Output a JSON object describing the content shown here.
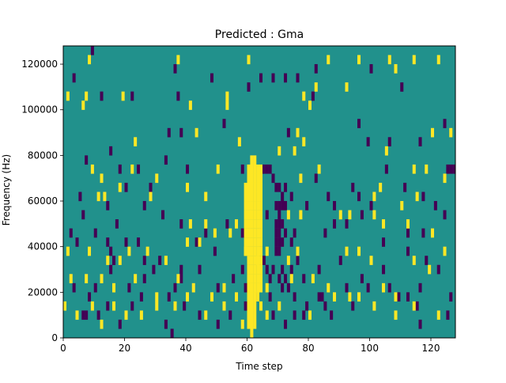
{
  "chart_data": {
    "type": "heatmap",
    "title": "Predicted : Gma",
    "xlabel": "Time step",
    "ylabel": "Frequency (Hz)",
    "xlim": [
      0,
      128
    ],
    "ylim": [
      0,
      128000
    ],
    "x_ticks": [
      0,
      20,
      40,
      60,
      80,
      100,
      120
    ],
    "y_ticks": [
      0,
      20000,
      40000,
      60000,
      80000,
      100000,
      120000
    ],
    "x_tick_labels": [
      "0",
      "20",
      "40",
      "60",
      "80",
      "100",
      "120"
    ],
    "y_tick_labels": [
      "0",
      "20000",
      "40000",
      "60000",
      "80000",
      "100000",
      "120000"
    ],
    "cell_height": 4000,
    "colormap": "viridis",
    "background_value": 0,
    "colors": {
      "background": "#21918c",
      "high": "#fde725",
      "low": "#440154"
    },
    "high_cells": [
      [
        8,
        120000
      ],
      [
        7,
        104000
      ],
      [
        1,
        104000
      ],
      [
        6,
        100000
      ],
      [
        19,
        104000
      ],
      [
        37,
        120000
      ],
      [
        41,
        100000
      ],
      [
        53,
        104000
      ],
      [
        60,
        120000
      ],
      [
        78,
        104000
      ],
      [
        86,
        120000
      ],
      [
        96,
        120000
      ],
      [
        106,
        120000
      ],
      [
        108,
        116000
      ],
      [
        114,
        120000
      ],
      [
        122,
        120000
      ],
      [
        82,
        108000
      ],
      [
        92,
        108000
      ],
      [
        53,
        100000
      ],
      [
        80,
        100000
      ],
      [
        23,
        84000
      ],
      [
        43,
        88000
      ],
      [
        57,
        84000
      ],
      [
        70,
        80000
      ],
      [
        75,
        80000
      ],
      [
        76,
        88000
      ],
      [
        78,
        84000
      ],
      [
        105,
        80000
      ],
      [
        120,
        88000
      ],
      [
        126,
        88000
      ],
      [
        9,
        72000
      ],
      [
        12,
        68000
      ],
      [
        22,
        72000
      ],
      [
        30,
        68000
      ],
      [
        40,
        64000
      ],
      [
        50,
        72000
      ],
      [
        77,
        68000
      ],
      [
        83,
        72000
      ],
      [
        114,
        72000
      ],
      [
        118,
        72000
      ],
      [
        124,
        68000
      ],
      [
        11,
        60000
      ],
      [
        13,
        60000
      ],
      [
        18,
        64000
      ],
      [
        28,
        60000
      ],
      [
        46,
        60000
      ],
      [
        101,
        60000
      ],
      [
        103,
        64000
      ],
      [
        110,
        56000
      ],
      [
        115,
        60000
      ],
      [
        41,
        48000
      ],
      [
        46,
        48000
      ],
      [
        49,
        44000
      ],
      [
        54,
        44000
      ],
      [
        56,
        48000
      ],
      [
        73,
        52000
      ],
      [
        77,
        52000
      ],
      [
        90,
        52000
      ],
      [
        93,
        52000
      ],
      [
        101,
        52000
      ],
      [
        104,
        48000
      ],
      [
        112,
        48000
      ],
      [
        120,
        44000
      ],
      [
        1,
        36000
      ],
      [
        8,
        36000
      ],
      [
        14,
        32000
      ],
      [
        18,
        32000
      ],
      [
        21,
        36000
      ],
      [
        27,
        36000
      ],
      [
        33,
        32000
      ],
      [
        40,
        40000
      ],
      [
        44,
        40000
      ],
      [
        59,
        36000
      ],
      [
        63,
        32000
      ],
      [
        66,
        36000
      ],
      [
        73,
        32000
      ],
      [
        76,
        36000
      ],
      [
        92,
        36000
      ],
      [
        96,
        36000
      ],
      [
        100,
        32000
      ],
      [
        114,
        32000
      ],
      [
        119,
        28000
      ],
      [
        124,
        36000
      ],
      [
        2,
        24000
      ],
      [
        7,
        24000
      ],
      [
        12,
        24000
      ],
      [
        16,
        20000
      ],
      [
        23,
        24000
      ],
      [
        30,
        16000
      ],
      [
        37,
        24000
      ],
      [
        42,
        20000
      ],
      [
        48,
        16000
      ],
      [
        52,
        20000
      ],
      [
        56,
        16000
      ],
      [
        66,
        20000
      ],
      [
        74,
        24000
      ],
      [
        81,
        24000
      ],
      [
        86,
        20000
      ],
      [
        88,
        16000
      ],
      [
        96,
        16000
      ],
      [
        104,
        20000
      ],
      [
        108,
        16000
      ],
      [
        0,
        12000
      ],
      [
        4,
        8000
      ],
      [
        9,
        12000
      ],
      [
        12,
        4000
      ],
      [
        16,
        12000
      ],
      [
        20,
        8000
      ],
      [
        25,
        8000
      ],
      [
        30,
        12000
      ],
      [
        36,
        12000
      ],
      [
        40,
        16000
      ],
      [
        46,
        8000
      ],
      [
        52,
        12000
      ],
      [
        58,
        4000
      ],
      [
        64,
        12000
      ],
      [
        66,
        8000
      ],
      [
        70,
        12000
      ],
      [
        80,
        8000
      ],
      [
        93,
        16000
      ],
      [
        101,
        12000
      ],
      [
        108,
        8000
      ],
      [
        114,
        12000
      ],
      [
        122,
        8000
      ],
      [
        59,
        64000
      ],
      [
        59,
        60000
      ],
      [
        59,
        56000
      ],
      [
        59,
        52000
      ],
      [
        59,
        48000
      ],
      [
        59,
        44000
      ],
      [
        59,
        40000
      ],
      [
        59,
        36000
      ],
      [
        60,
        72000
      ],
      [
        60,
        68000
      ],
      [
        60,
        64000
      ],
      [
        60,
        60000
      ],
      [
        60,
        56000
      ],
      [
        60,
        52000
      ],
      [
        60,
        48000
      ],
      [
        60,
        44000
      ],
      [
        60,
        40000
      ],
      [
        60,
        36000
      ],
      [
        60,
        32000
      ],
      [
        60,
        28000
      ],
      [
        60,
        24000
      ],
      [
        60,
        20000
      ],
      [
        60,
        16000
      ],
      [
        60,
        12000
      ],
      [
        60,
        8000
      ],
      [
        60,
        4000
      ],
      [
        61,
        76000
      ],
      [
        61,
        72000
      ],
      [
        61,
        68000
      ],
      [
        61,
        64000
      ],
      [
        61,
        60000
      ],
      [
        61,
        56000
      ],
      [
        61,
        52000
      ],
      [
        61,
        48000
      ],
      [
        61,
        44000
      ],
      [
        61,
        40000
      ],
      [
        61,
        36000
      ],
      [
        61,
        32000
      ],
      [
        61,
        28000
      ],
      [
        61,
        24000
      ],
      [
        61,
        20000
      ],
      [
        61,
        16000
      ],
      [
        61,
        12000
      ],
      [
        61,
        8000
      ],
      [
        61,
        4000
      ],
      [
        61,
        0
      ],
      [
        62,
        76000
      ],
      [
        62,
        72000
      ],
      [
        62,
        68000
      ],
      [
        62,
        64000
      ],
      [
        62,
        60000
      ],
      [
        62,
        56000
      ],
      [
        62,
        52000
      ],
      [
        62,
        48000
      ],
      [
        62,
        44000
      ],
      [
        62,
        40000
      ],
      [
        62,
        36000
      ],
      [
        62,
        32000
      ],
      [
        62,
        28000
      ],
      [
        62,
        24000
      ],
      [
        62,
        20000
      ],
      [
        62,
        16000
      ],
      [
        62,
        12000
      ],
      [
        62,
        8000
      ],
      [
        62,
        4000
      ],
      [
        63,
        72000
      ],
      [
        63,
        68000
      ],
      [
        63,
        64000
      ],
      [
        63,
        60000
      ],
      [
        63,
        56000
      ],
      [
        63,
        52000
      ],
      [
        63,
        48000
      ],
      [
        63,
        44000
      ],
      [
        63,
        40000
      ],
      [
        63,
        36000
      ],
      [
        63,
        32000
      ],
      [
        63,
        28000
      ],
      [
        63,
        24000
      ],
      [
        63,
        20000
      ],
      [
        63,
        16000
      ],
      [
        64,
        72000
      ],
      [
        64,
        68000
      ],
      [
        64,
        64000
      ],
      [
        64,
        60000
      ],
      [
        64,
        56000
      ],
      [
        64,
        52000
      ],
      [
        64,
        48000
      ],
      [
        64,
        44000
      ],
      [
        64,
        40000
      ],
      [
        64,
        36000
      ],
      [
        64,
        32000
      ],
      [
        64,
        28000
      ],
      [
        64,
        24000
      ],
      [
        64,
        20000
      ]
    ],
    "low_cells": [
      [
        9,
        124000
      ],
      [
        3,
        112000
      ],
      [
        36,
        116000
      ],
      [
        48,
        112000
      ],
      [
        64,
        112000
      ],
      [
        68,
        112000
      ],
      [
        76,
        112000
      ],
      [
        82,
        116000
      ],
      [
        100,
        116000
      ],
      [
        110,
        108000
      ],
      [
        22,
        104000
      ],
      [
        12,
        104000
      ],
      [
        37,
        104000
      ],
      [
        60,
        108000
      ],
      [
        72,
        112000
      ],
      [
        81,
        104000
      ],
      [
        34,
        88000
      ],
      [
        38,
        88000
      ],
      [
        52,
        92000
      ],
      [
        73,
        88000
      ],
      [
        96,
        92000
      ],
      [
        99,
        84000
      ],
      [
        106,
        84000
      ],
      [
        116,
        84000
      ],
      [
        124,
        92000
      ],
      [
        127,
        72000
      ],
      [
        126,
        72000
      ],
      [
        125,
        72000
      ],
      [
        7,
        76000
      ],
      [
        15,
        80000
      ],
      [
        18,
        72000
      ],
      [
        24,
        72000
      ],
      [
        28,
        64000
      ],
      [
        33,
        76000
      ],
      [
        40,
        72000
      ],
      [
        58,
        72000
      ],
      [
        64,
        68000
      ],
      [
        65,
        72000
      ],
      [
        66,
        72000
      ],
      [
        67,
        72000
      ],
      [
        68,
        68000
      ],
      [
        69,
        64000
      ],
      [
        70,
        64000
      ],
      [
        71,
        60000
      ],
      [
        72,
        64000
      ],
      [
        72,
        56000
      ],
      [
        74,
        60000
      ],
      [
        79,
        56000
      ],
      [
        82,
        68000
      ],
      [
        86,
        60000
      ],
      [
        88,
        56000
      ],
      [
        94,
        64000
      ],
      [
        96,
        60000
      ],
      [
        100,
        56000
      ],
      [
        105,
        72000
      ],
      [
        111,
        64000
      ],
      [
        117,
        60000
      ],
      [
        121,
        56000
      ],
      [
        124,
        52000
      ],
      [
        5,
        60000
      ],
      [
        6,
        52000
      ],
      [
        14,
        56000
      ],
      [
        17,
        48000
      ],
      [
        20,
        64000
      ],
      [
        26,
        56000
      ],
      [
        32,
        52000
      ],
      [
        38,
        48000
      ],
      [
        46,
        44000
      ],
      [
        53,
        48000
      ],
      [
        58,
        44000
      ],
      [
        66,
        52000
      ],
      [
        69,
        56000
      ],
      [
        69,
        48000
      ],
      [
        69,
        44000
      ],
      [
        69,
        40000
      ],
      [
        69,
        36000
      ],
      [
        70,
        56000
      ],
      [
        70,
        52000
      ],
      [
        70,
        48000
      ],
      [
        70,
        44000
      ],
      [
        70,
        40000
      ],
      [
        70,
        36000
      ],
      [
        71,
        56000
      ],
      [
        71,
        48000
      ],
      [
        71,
        40000
      ],
      [
        72,
        44000
      ],
      [
        74,
        40000
      ],
      [
        75,
        44000
      ],
      [
        85,
        44000
      ],
      [
        88,
        48000
      ],
      [
        92,
        48000
      ],
      [
        97,
        52000
      ],
      [
        104,
        40000
      ],
      [
        112,
        44000
      ],
      [
        117,
        44000
      ],
      [
        2,
        44000
      ],
      [
        4,
        40000
      ],
      [
        10,
        44000
      ],
      [
        14,
        40000
      ],
      [
        15,
        36000
      ],
      [
        16,
        32000
      ],
      [
        20,
        40000
      ],
      [
        24,
        40000
      ],
      [
        26,
        32000
      ],
      [
        31,
        32000
      ],
      [
        38,
        28000
      ],
      [
        43,
        40000
      ],
      [
        49,
        36000
      ],
      [
        58,
        28000
      ],
      [
        64,
        36000
      ],
      [
        65,
        32000
      ],
      [
        66,
        28000
      ],
      [
        67,
        24000
      ],
      [
        68,
        28000
      ],
      [
        70,
        24000
      ],
      [
        71,
        28000
      ],
      [
        72,
        24000
      ],
      [
        73,
        20000
      ],
      [
        74,
        28000
      ],
      [
        76,
        32000
      ],
      [
        78,
        24000
      ],
      [
        83,
        28000
      ],
      [
        90,
        32000
      ],
      [
        97,
        24000
      ],
      [
        104,
        28000
      ],
      [
        112,
        36000
      ],
      [
        118,
        32000
      ],
      [
        122,
        28000
      ],
      [
        3,
        20000
      ],
      [
        8,
        16000
      ],
      [
        10,
        20000
      ],
      [
        15,
        28000
      ],
      [
        21,
        20000
      ],
      [
        26,
        24000
      ],
      [
        29,
        28000
      ],
      [
        34,
        16000
      ],
      [
        36,
        20000
      ],
      [
        38,
        24000
      ],
      [
        44,
        28000
      ],
      [
        50,
        20000
      ],
      [
        55,
        24000
      ],
      [
        59,
        20000
      ],
      [
        63,
        16000
      ],
      [
        67,
        16000
      ],
      [
        71,
        20000
      ],
      [
        75,
        16000
      ],
      [
        79,
        12000
      ],
      [
        84,
        16000
      ],
      [
        85,
        12000
      ],
      [
        92,
        20000
      ],
      [
        99,
        20000
      ],
      [
        106,
        20000
      ],
      [
        112,
        16000
      ],
      [
        116,
        20000
      ],
      [
        126,
        16000
      ],
      [
        6,
        8000
      ],
      [
        7,
        8000
      ],
      [
        11,
        8000
      ],
      [
        14,
        12000
      ],
      [
        18,
        4000
      ],
      [
        22,
        12000
      ],
      [
        25,
        16000
      ],
      [
        33,
        4000
      ],
      [
        35,
        0
      ],
      [
        39,
        12000
      ],
      [
        44,
        8000
      ],
      [
        50,
        4000
      ],
      [
        54,
        8000
      ],
      [
        59,
        12000
      ],
      [
        68,
        8000
      ],
      [
        72,
        4000
      ],
      [
        75,
        8000
      ],
      [
        78,
        8000
      ],
      [
        83,
        16000
      ],
      [
        87,
        8000
      ],
      [
        94,
        12000
      ],
      [
        109,
        16000
      ],
      [
        116,
        4000
      ],
      [
        125,
        8000
      ],
      [
        115,
        12000
      ]
    ]
  }
}
